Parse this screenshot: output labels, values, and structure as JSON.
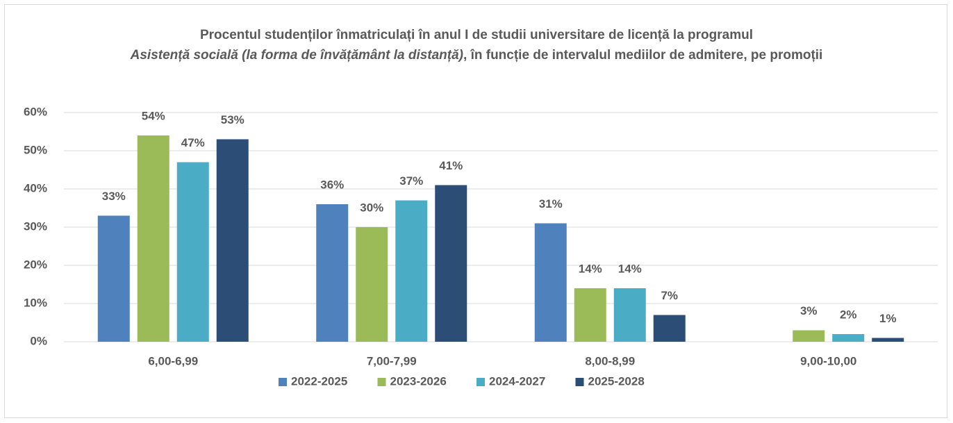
{
  "chart_data": {
    "type": "bar",
    "title": [
      "Procentul studenților înmatriculați în anul I de studii universitare de licență la programul",
      "Asistență socială (la forma de învățământ la distanță)",
      ", în funcție de intervalul mediilor de admitere, pe promoții"
    ],
    "title_italic": [
      false,
      true,
      false
    ],
    "categories": [
      "6,00-6,99",
      "7,00-7,99",
      "8,00-8,99",
      "9,00-10,00"
    ],
    "series": [
      {
        "name": "2022-2025",
        "color": "#4f81bd",
        "values": [
          33,
          36,
          31,
          null
        ],
        "value_labels": [
          "33%",
          "36%",
          "31%",
          null
        ]
      },
      {
        "name": "2023-2026",
        "color": "#9bbb59",
        "values": [
          54,
          30,
          14,
          3
        ],
        "value_labels": [
          "54%",
          "30%",
          "14%",
          "3%"
        ]
      },
      {
        "name": "2024-2027",
        "color": "#4bacc6",
        "values": [
          47,
          37,
          14,
          2
        ],
        "value_labels": [
          "47%",
          "37%",
          "14%",
          "2%"
        ]
      },
      {
        "name": "2025-2028",
        "color": "#2c4d75",
        "values": [
          53,
          41,
          7,
          1
        ],
        "value_labels": [
          "53%",
          "41%",
          "7%",
          "1%"
        ]
      }
    ],
    "ylim": [
      0,
      60
    ],
    "yticks": [
      {
        "value": 0,
        "label": "0%"
      },
      {
        "value": 10,
        "label": "10%"
      },
      {
        "value": 20,
        "label": "20%"
      },
      {
        "value": 30,
        "label": "30%"
      },
      {
        "value": 40,
        "label": "40%"
      },
      {
        "value": 50,
        "label": "50%"
      },
      {
        "value": 60,
        "label": "60%"
      }
    ],
    "grid": true,
    "legend": "bottom"
  }
}
